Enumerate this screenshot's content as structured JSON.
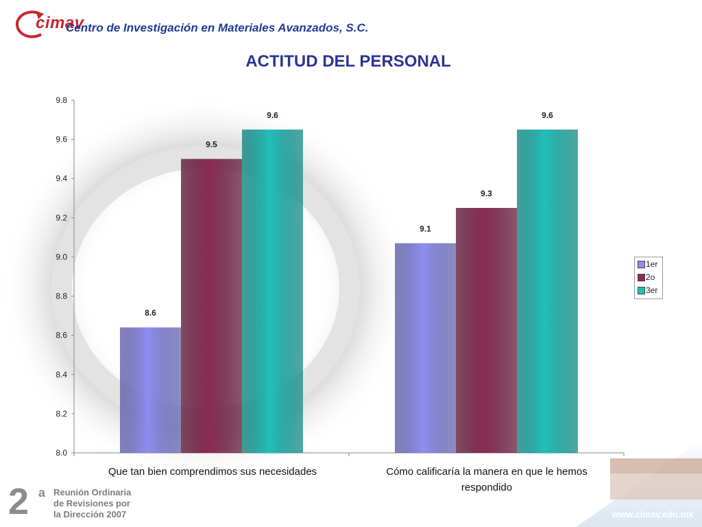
{
  "header": {
    "logo": "cimav",
    "org_name": "Centro de Investigación en Materiales Avanzados, S.C."
  },
  "footer": {
    "edition": "2",
    "edition_suffix": "a",
    "line1": "Reunión Ordinaria",
    "line2": "de Revisiones por",
    "line3": "la Dirección 2007",
    "url": "www.cimav.edu.mx"
  },
  "colors": {
    "series_1er": "#8e8ef0",
    "series_2o": "#8b2b55",
    "series_3er": "#1fc1bb",
    "title": "#2b3593",
    "logo_red": "#c8262d"
  },
  "chart_data": {
    "type": "bar",
    "title": "ACTITUD DEL PERSONAL",
    "xlabel": "",
    "ylabel": "",
    "ylim": [
      8.0,
      9.8
    ],
    "y_ticks": [
      "8.0",
      "8.2",
      "8.4",
      "8.6",
      "8.8",
      "9.0",
      "9.2",
      "9.4",
      "9.6",
      "9.8"
    ],
    "categories": [
      "Que tan bien comprendimos sus necesidades",
      "Cómo calificaría la manera en que le hemos respondido"
    ],
    "series": [
      {
        "name": "1er",
        "values": [
          8.64,
          9.07
        ],
        "labels": [
          "8.6",
          "9.1"
        ]
      },
      {
        "name": "2o",
        "values": [
          9.5,
          9.25
        ],
        "labels": [
          "9.5",
          "9.3"
        ]
      },
      {
        "name": "3er",
        "values": [
          9.65,
          9.65
        ],
        "labels": [
          "9.6",
          "9.6"
        ]
      }
    ],
    "legend": "right",
    "grid": false
  }
}
